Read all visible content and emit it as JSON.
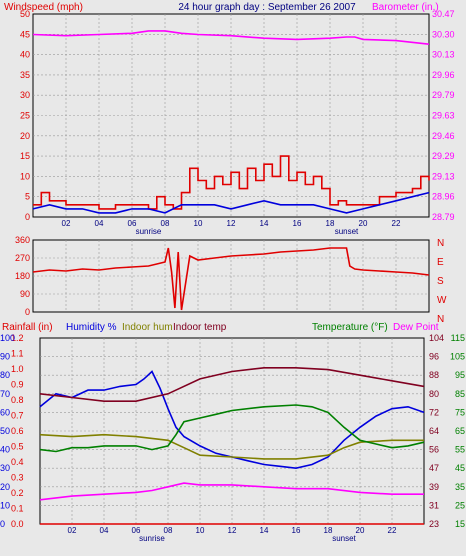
{
  "header": {
    "left_label": "Windspeed (mph)",
    "title": "24 hour graph day : September 26 2007",
    "right_label": "Barometer (in.)"
  },
  "colors": {
    "wind": "#e00000",
    "wind_avg": "#0000dd",
    "barometer": "#ff00ff",
    "direction": "#e00000",
    "rainfall": "#e00000",
    "humidity": "#0000dd",
    "indoor_hum": "#808000",
    "indoor_temp": "#800020",
    "temperature": "#008000",
    "dew_point": "#ff00ff",
    "background": "#e8e8e8",
    "grid": "#999999"
  },
  "chart_data": [
    {
      "type": "line",
      "x_ticks": [
        "02",
        "04",
        "06",
        "08",
        "10",
        "12",
        "14",
        "16",
        "18",
        "20",
        "22"
      ],
      "x_markers": [
        "sunrise",
        "sunset"
      ],
      "left_ticks": [
        "0",
        "5",
        "10",
        "15",
        "20",
        "25",
        "30",
        "35",
        "40",
        "45",
        "50"
      ],
      "right_ticks": [
        "28.79",
        "28.96",
        "29.13",
        "29.29",
        "29.46",
        "29.63",
        "29.79",
        "29.96",
        "30.13",
        "30.30",
        "30.47"
      ],
      "ylim_left": [
        0,
        50
      ],
      "ylim_right": [
        28.79,
        30.47
      ],
      "series": [
        {
          "key": "barometer",
          "axis": "right",
          "x": [
            0,
            2,
            4,
            6,
            7,
            8,
            9,
            10,
            12,
            14,
            16,
            18,
            19,
            19.5,
            20,
            22,
            24
          ],
          "y": [
            30.3,
            30.29,
            30.3,
            30.31,
            30.33,
            30.33,
            30.31,
            30.3,
            30.29,
            30.27,
            30.26,
            30.27,
            30.28,
            30.28,
            30.26,
            30.25,
            30.22
          ]
        },
        {
          "key": "wind",
          "axis": "left",
          "x": [
            0,
            0.5,
            1,
            2,
            3,
            4,
            5,
            6,
            7,
            7.5,
            8,
            8.5,
            9,
            9.5,
            10,
            10.5,
            11,
            11.5,
            12,
            12.5,
            13,
            13.5,
            14,
            14.5,
            15,
            15.5,
            16,
            16.5,
            17,
            17.5,
            18,
            18.5,
            19,
            20,
            21,
            22,
            23,
            23.5,
            24
          ],
          "y": [
            3,
            6,
            4,
            3,
            3,
            2,
            3,
            3,
            2,
            5,
            3,
            2,
            6,
            12,
            9,
            7,
            10,
            8,
            11,
            7,
            12,
            9,
            13,
            10,
            15,
            9,
            11,
            8,
            10,
            7,
            3,
            4,
            3,
            3,
            5,
            6,
            7,
            10,
            9
          ]
        },
        {
          "key": "wind_avg",
          "axis": "left",
          "x": [
            0,
            1,
            2,
            3,
            4,
            5,
            6,
            7,
            8,
            9,
            10,
            11,
            12,
            13,
            14,
            15,
            16,
            17,
            18,
            19,
            20,
            21,
            22,
            23,
            24
          ],
          "y": [
            2,
            3,
            2,
            2,
            1,
            1,
            2,
            2,
            1,
            3,
            3,
            3,
            2,
            3,
            4,
            3,
            3,
            3,
            2,
            1,
            2,
            3,
            4,
            5,
            6
          ]
        }
      ]
    },
    {
      "type": "line",
      "x_ticks": [
        "02",
        "04",
        "06",
        "08",
        "10",
        "12",
        "14",
        "16",
        "18",
        "20",
        "22"
      ],
      "left_ticks": [
        "0",
        "90",
        "180",
        "270",
        "360"
      ],
      "right_ticks": [
        "N",
        "E",
        "S",
        "W",
        "N"
      ],
      "ylim_left": [
        0,
        360
      ],
      "series": [
        {
          "key": "direction",
          "axis": "left",
          "x": [
            0,
            1,
            2,
            3,
            4,
            5,
            6,
            7,
            7.5,
            8,
            8.2,
            8.4,
            8.6,
            8.8,
            9,
            9.5,
            10,
            11,
            12,
            13,
            14,
            15,
            16,
            17,
            18,
            19,
            19.2,
            19.5,
            20,
            21,
            22,
            23,
            24
          ],
          "y": [
            200,
            210,
            205,
            215,
            210,
            220,
            225,
            230,
            240,
            250,
            320,
            200,
            20,
            300,
            10,
            280,
            260,
            270,
            280,
            285,
            290,
            300,
            305,
            310,
            320,
            320,
            230,
            215,
            210,
            205,
            200,
            195,
            185
          ]
        }
      ]
    },
    {
      "type": "line",
      "x_ticks": [
        "02",
        "04",
        "06",
        "08",
        "10",
        "12",
        "14",
        "16",
        "18",
        "20",
        "22"
      ],
      "x_markers": [
        "sunrise",
        "sunset"
      ],
      "legend_left": [
        "Rainfall (in)",
        "Humidity %",
        "Indoor hum",
        "Indoor temp"
      ],
      "legend_right": [
        "Temperature (°F)",
        "Dew Point"
      ],
      "rain_ticks": [
        "0.0",
        "0.1",
        "0.2",
        "0.3",
        "0.4",
        "0.5",
        "0.6",
        "0.7",
        "0.8",
        "0.9",
        "1.0",
        "1.1",
        "1.2"
      ],
      "hum_ticks": [
        "0",
        "10",
        "20",
        "30",
        "40",
        "50",
        "60",
        "70",
        "80",
        "90",
        "100"
      ],
      "temp_ticks_outer": [
        "15",
        "25",
        "35",
        "45",
        "55",
        "65",
        "75",
        "85",
        "95",
        "105",
        "115"
      ],
      "temp_ticks_inner": [
        "23",
        "31",
        "39",
        "47",
        "56",
        "64",
        "72",
        "80",
        "88",
        "96",
        "104"
      ],
      "ylim_humidity": [
        0,
        100
      ],
      "ylim_temperature": [
        15,
        115
      ],
      "series": [
        {
          "key": "rainfall",
          "axis": "rain",
          "x": [
            0,
            24
          ],
          "y": [
            0,
            0
          ]
        },
        {
          "key": "humidity",
          "axis": "hum",
          "x": [
            0,
            1,
            2,
            3,
            4,
            5,
            6,
            6.5,
            7,
            7.5,
            8,
            8.5,
            9,
            10,
            11,
            12,
            13,
            14,
            15,
            16,
            17,
            18,
            19,
            20,
            21,
            22,
            23,
            24
          ],
          "y": [
            63,
            70,
            68,
            72,
            72,
            74,
            75,
            78,
            82,
            73,
            62,
            52,
            47,
            42,
            38,
            36,
            34,
            32,
            31,
            30,
            32,
            36,
            45,
            52,
            58,
            62,
            63,
            60
          ]
        },
        {
          "key": "indoor_temp",
          "axis": "hum",
          "x": [
            0,
            2,
            4,
            6,
            8,
            10,
            12,
            14,
            16,
            18,
            20,
            22,
            24
          ],
          "y": [
            70,
            68,
            66,
            66,
            70,
            78,
            82,
            84,
            84,
            83,
            80,
            77,
            74
          ]
        },
        {
          "key": "indoor_hum",
          "axis": "hum",
          "x": [
            0,
            2,
            4,
            6,
            8,
            9,
            10,
            12,
            14,
            16,
            18,
            19,
            20,
            22,
            24
          ],
          "y": [
            48,
            47,
            48,
            47,
            45,
            41,
            37,
            36,
            35,
            35,
            37,
            41,
            44,
            45,
            45
          ]
        },
        {
          "key": "temperature",
          "axis": "hum",
          "x": [
            0,
            1,
            2,
            3,
            4,
            5,
            6,
            7,
            8,
            8.5,
            9,
            10,
            11,
            12,
            14,
            16,
            17,
            18,
            19,
            20,
            21,
            22,
            23,
            24
          ],
          "y": [
            40,
            39,
            41,
            41,
            42,
            42,
            42,
            40,
            42,
            48,
            55,
            57,
            59,
            61,
            63,
            64,
            63,
            60,
            52,
            45,
            43,
            41,
            42,
            44
          ]
        },
        {
          "key": "dew_point",
          "axis": "hum",
          "x": [
            0,
            2,
            4,
            6,
            7,
            8,
            9,
            10,
            12,
            14,
            16,
            18,
            20,
            22,
            24
          ],
          "y": [
            13,
            15,
            16,
            17,
            18,
            20,
            22,
            21,
            21,
            20,
            19,
            19,
            17,
            16,
            16
          ]
        }
      ]
    }
  ]
}
